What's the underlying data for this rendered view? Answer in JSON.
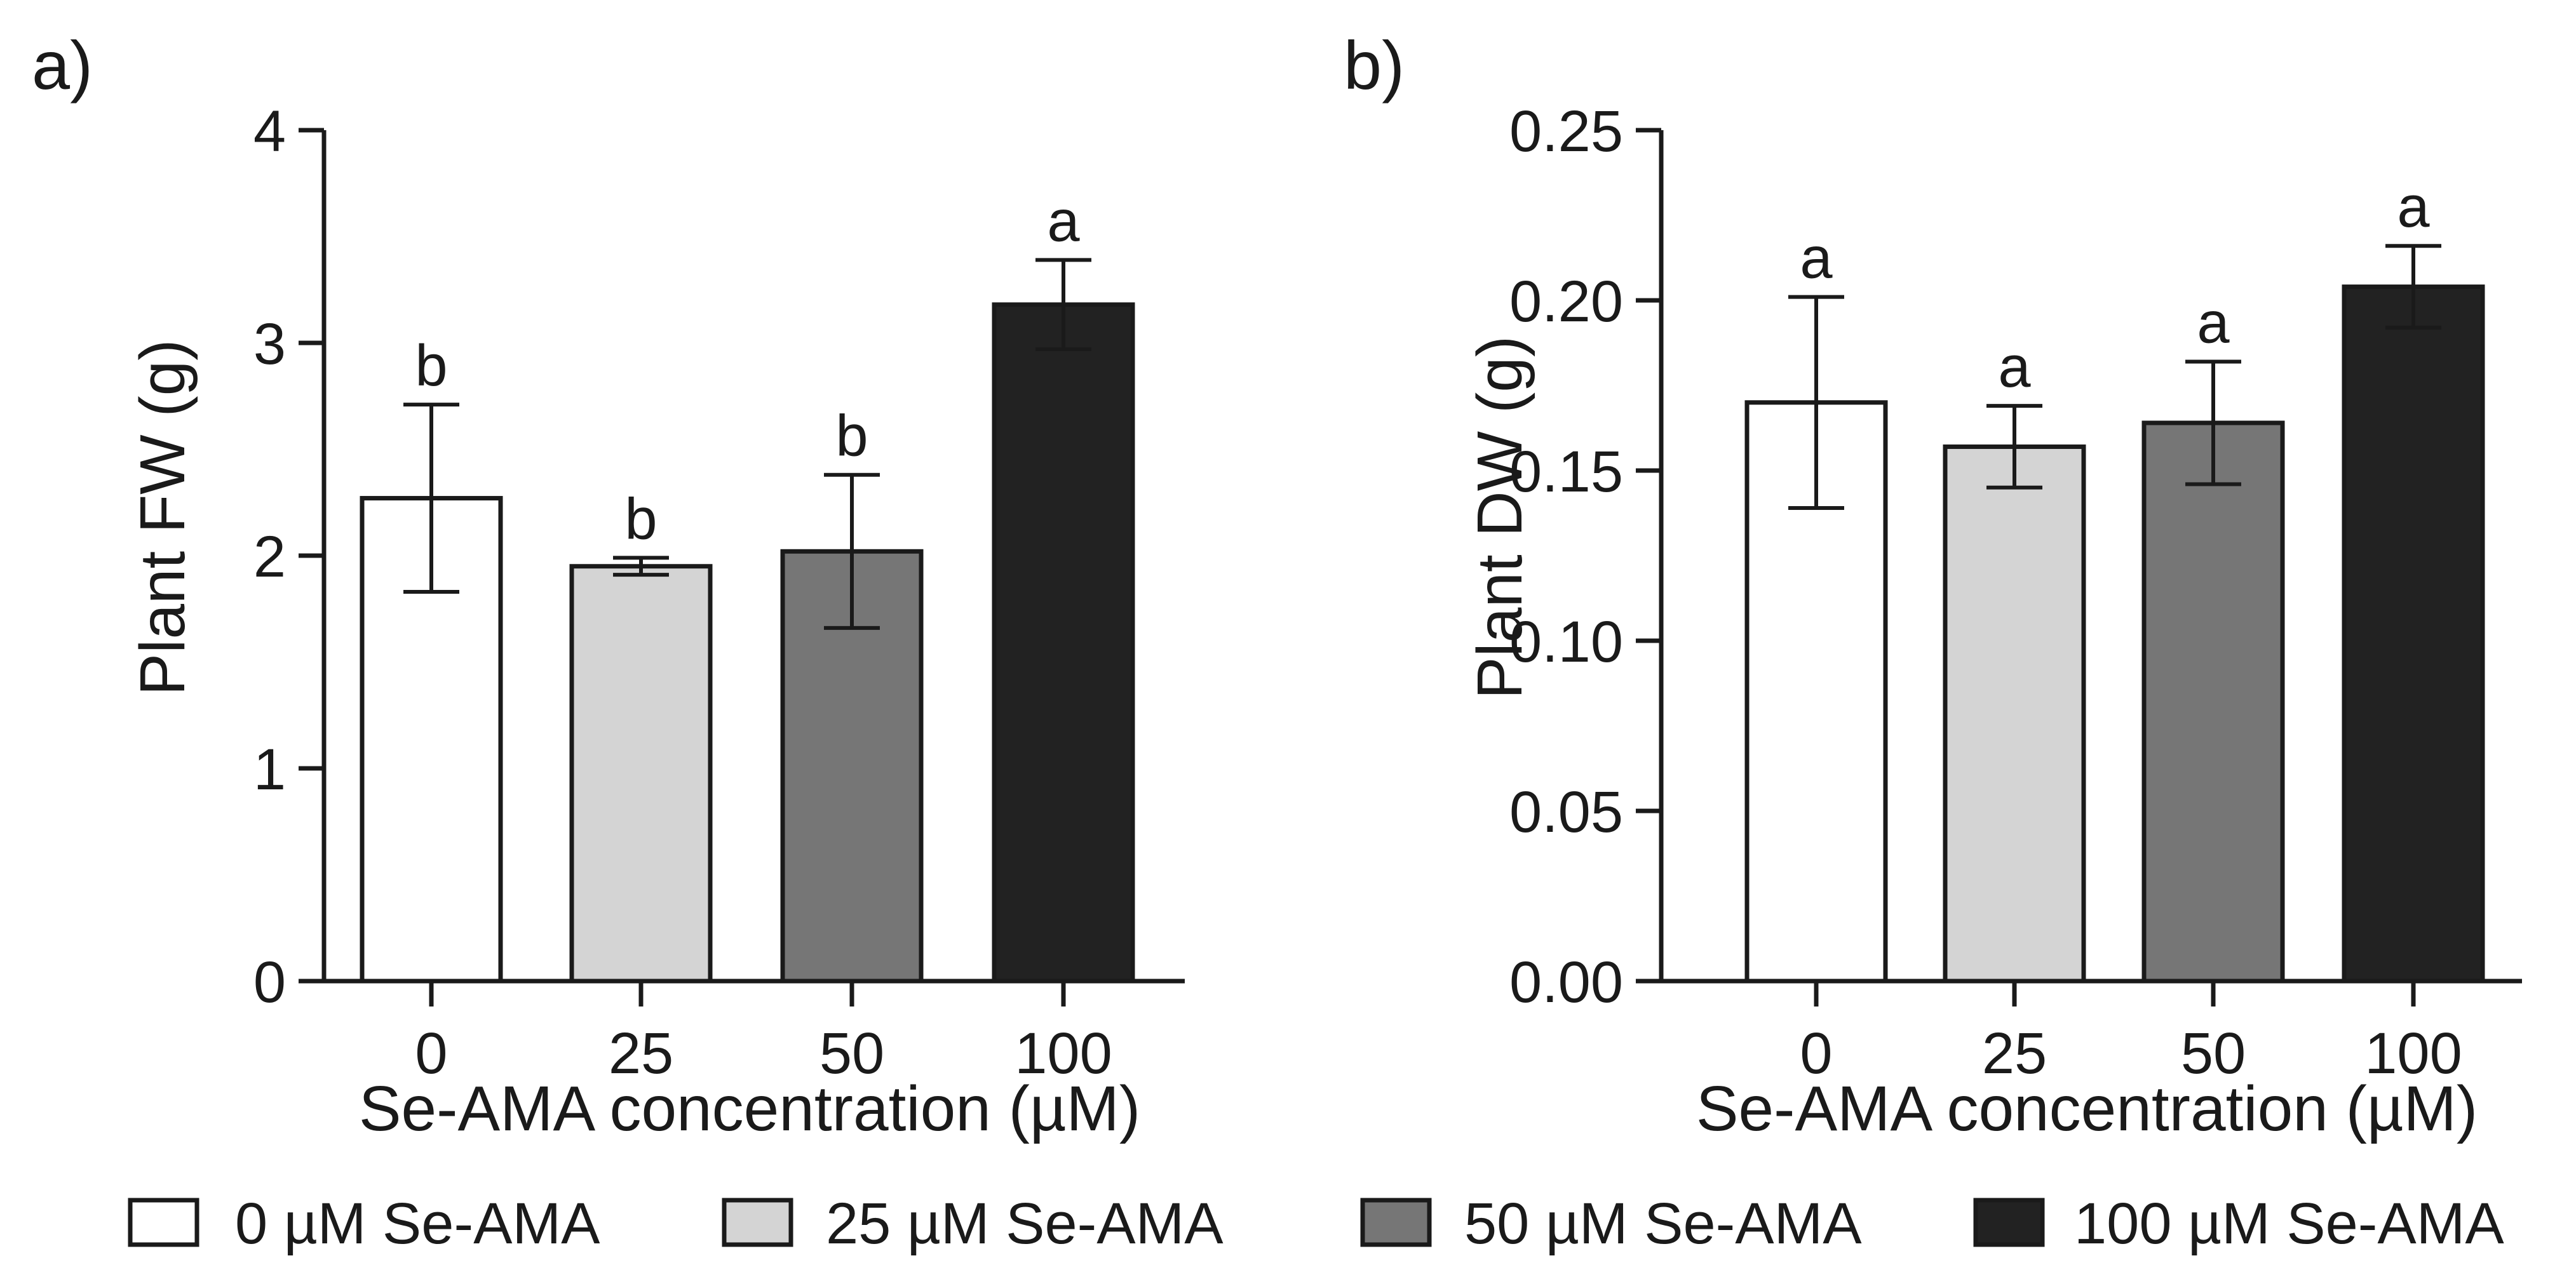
{
  "chart_data": [
    {
      "type": "bar",
      "panel_label": "a)",
      "categories": [
        "0",
        "25",
        "50",
        "100"
      ],
      "values": [
        2.27,
        1.95,
        2.02,
        3.18
      ],
      "errors": [
        0.44,
        0.04,
        0.36,
        0.21
      ],
      "significance": [
        "b",
        "b",
        "b",
        "a"
      ],
      "ylabel": "Plant FW (g)",
      "xlabel": "Se-AMA concentration (µM)",
      "ylim": [
        0,
        4
      ],
      "yticks": [
        "0",
        "1",
        "2",
        "3",
        "4"
      ],
      "ytick_values": [
        0,
        1,
        2,
        3,
        4
      ],
      "grid": false
    },
    {
      "type": "bar",
      "panel_label": "b)",
      "categories": [
        "0",
        "25",
        "50",
        "100"
      ],
      "values": [
        0.17,
        0.157,
        0.164,
        0.204
      ],
      "errors": [
        0.031,
        0.012,
        0.018,
        0.012
      ],
      "significance": [
        "a",
        "a",
        "a",
        "a"
      ],
      "ylabel": "Plant DW (g)",
      "xlabel": "Se-AMA concentration (µM)",
      "ylim": [
        0,
        0.25
      ],
      "yticks": [
        "0.00",
        "0.05",
        "0.10",
        "0.15",
        "0.20",
        "0.25"
      ],
      "ytick_values": [
        0,
        0.05,
        0.1,
        0.15,
        0.2,
        0.25
      ],
      "grid": false
    }
  ],
  "colors": [
    "#ffffff",
    "#d4d4d4",
    "#767676",
    "#222222"
  ],
  "legend": {
    "placement": "bottom",
    "entries": [
      "0 µM Se-AMA",
      "25 µM Se-AMA",
      "50 µM Se-AMA",
      "100 µM Se-AMA"
    ]
  }
}
